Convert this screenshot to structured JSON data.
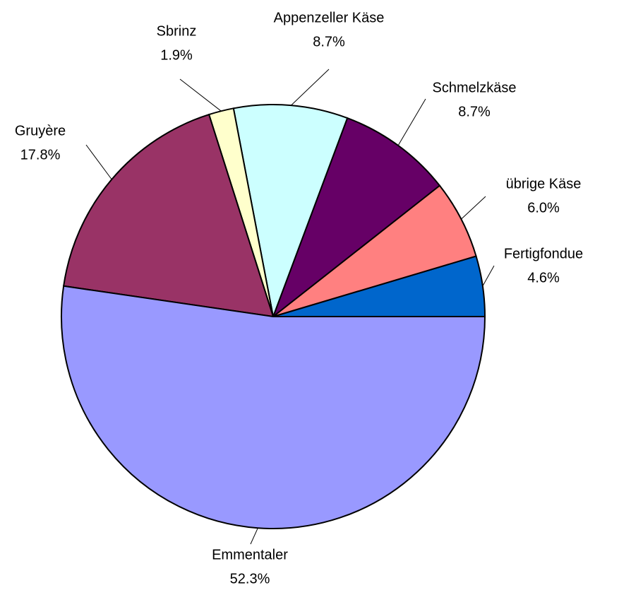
{
  "chart_data": {
    "type": "pie",
    "categories": [
      "Fertigfondue",
      "übrige Käse",
      "Schmelzkäse",
      "Appenzeller Käse",
      "Sbrinz",
      "Gruyère",
      "Emmentaler"
    ],
    "values": [
      4.6,
      6.0,
      8.7,
      8.7,
      1.9,
      17.8,
      52.3
    ],
    "value_labels": [
      "4.6%",
      "6.0%",
      "8.7%",
      "8.7%",
      "1.9%",
      "17.8%",
      "52.3%"
    ],
    "colors": [
      "#0066cc",
      "#ff8080",
      "#660066",
      "#ccffff",
      "#ffffcc",
      "#993366",
      "#9999ff"
    ]
  }
}
